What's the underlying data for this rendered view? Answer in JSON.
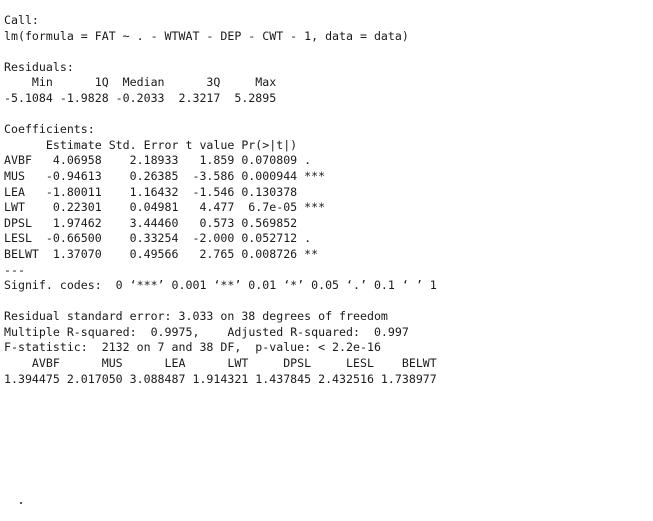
{
  "call": {
    "header": "Call:",
    "formula": "lm(formula = FAT ~ . - WTWAT - DEP - CWT - 1, data = data)"
  },
  "residuals": {
    "header": "Residuals:",
    "labels": "    Min      1Q  Median      3Q     Max ",
    "values": "-5.1084 -1.9828 -0.2033  2.3217  5.2895 "
  },
  "coefficients": {
    "header": "Coefficients:",
    "column_header": "      Estimate Std. Error t value Pr(>|t|)    ",
    "rows": [
      "AVBF   4.06958    2.18933   1.859 0.070809 .  ",
      "MUS   -0.94613    0.26385  -3.586 0.000944 ***",
      "LEA   -1.80011    1.16432  -1.546 0.130378    ",
      "LWT    0.22301    0.04981   4.477  6.7e-05 ***",
      "DPSL   1.97462    3.44460   0.573 0.569852    ",
      "LESL  -0.66500    0.33254  -2.000 0.052712 .  ",
      "BELWT  1.37070    0.49566   2.765 0.008726 ** "
    ],
    "separator": "---",
    "signif_codes": "Signif. codes:  0 ‘***’ 0.001 ‘**’ 0.01 ‘*’ 0.05 ‘.’ 0.1 ‘ ’ 1"
  },
  "summary": {
    "residual_se": "Residual standard error: 3.033 on 38 degrees of freedom",
    "r_squared": "Multiple R-squared:  0.9975,\tAdjusted R-squared:  0.997 ",
    "f_statistic": "F-statistic:  2132 on 7 and 38 DF,  p-value: < 2.2e-16"
  },
  "vif": {
    "names": "    AVBF      MUS      LEA      LWT     DPSL     LESL    BELWT ",
    "values": "1.394475 2.017050 3.088487 1.914321 1.437845 2.432516 1.738977 "
  }
}
